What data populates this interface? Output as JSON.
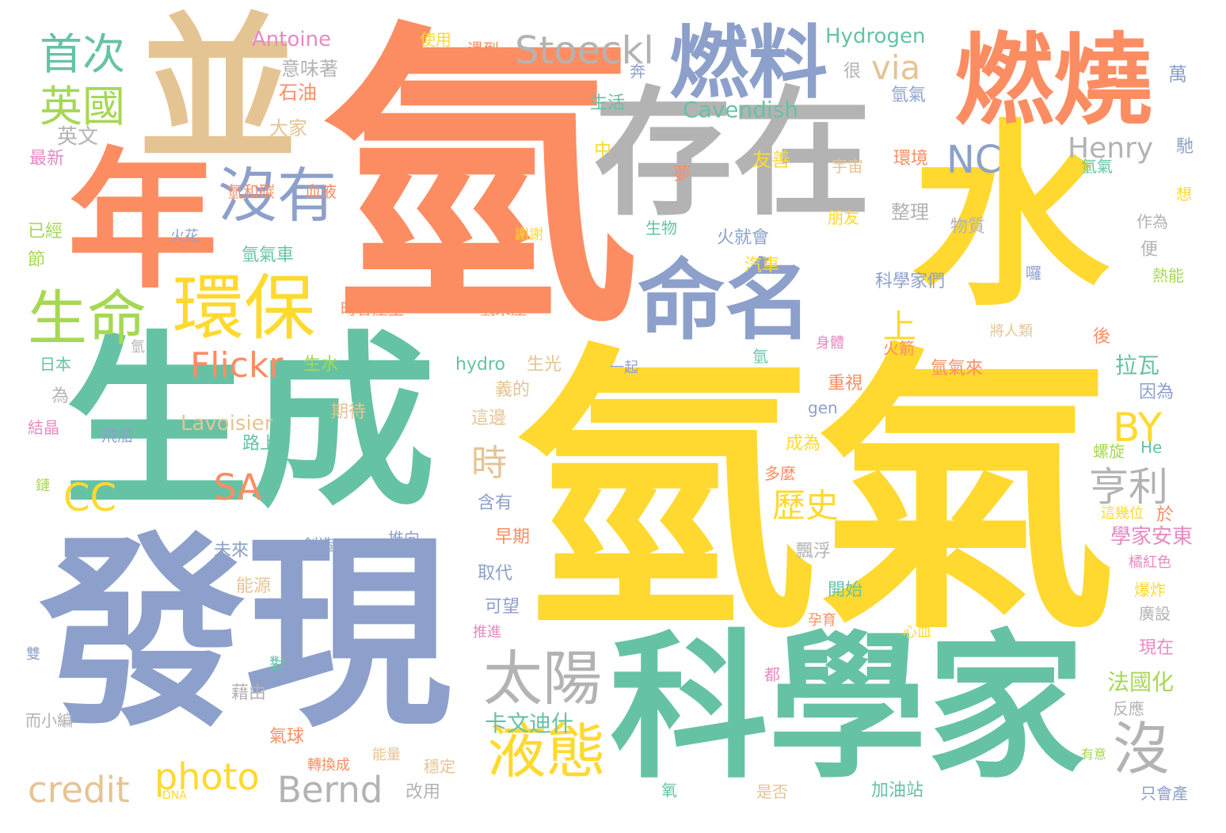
{
  "palette": {
    "orange": "#fc8d62",
    "yellow": "#ffd92f",
    "green": "#66c2a5",
    "blue": "#8da0cb",
    "gray": "#b3b3b3",
    "tan": "#e5c494",
    "lime": "#a6d854",
    "pink": "#e78ac3"
  },
  "words": [
    "氫",
    "氫氣",
    "生成",
    "發現",
    "科學家",
    "水",
    "存在",
    "並",
    "年",
    "燃燒",
    "燃料",
    "命名",
    "環保",
    "沒有",
    "生命",
    "太陽",
    "液態",
    "沒",
    "亨利",
    "Stoeckl",
    "photo",
    "credit",
    "Bernd",
    "Flickr",
    "首次",
    "英國",
    "CC",
    "SA",
    "NC",
    "BY",
    "via",
    "歷史",
    "時",
    "上",
    "Henry",
    "Cavendish",
    "Hydrogen",
    "Antoine",
    "Lavoisier",
    "卡文迪什",
    "法國化",
    "學家安東",
    "拉瓦",
    "意味著",
    "石油",
    "大家",
    "英文",
    "最新",
    "氫和碳",
    "血液",
    "使用",
    "遇到",
    "奔",
    "生活",
    "很",
    "氫氣",
    "萬",
    "中",
    "宇宙",
    "環境",
    "馳",
    "友善",
    "夢",
    "氫氣",
    "想",
    "生物",
    "朋友",
    "整理",
    "物質",
    "作為",
    "已經",
    "節",
    "火花",
    "謝謝",
    "火就會",
    "氫氣車",
    "汽車",
    "便",
    "囉",
    "熱能",
    "時會產生",
    "氫來產",
    "科學家們",
    "將人類",
    "後",
    "日本",
    "氫",
    "生水",
    "hydro",
    "生光",
    "一起",
    "氫",
    "火箭",
    "身體",
    "氫氣來",
    "為",
    "義的",
    "重視",
    "因為",
    "結晶",
    "gen",
    "期待",
    "飛船",
    "這邊",
    "路上",
    "螺旋",
    "He",
    "成為",
    "多麼",
    "鏈",
    "含有",
    "這幾位",
    "於",
    "未來",
    "創造",
    "推向",
    "早期",
    "飄浮",
    "橘紅色",
    "能源",
    "取代",
    "開始",
    "爆炸",
    "可望",
    "廣設",
    "推進",
    "孕育",
    "心血",
    "雙",
    "海洋",
    "現在",
    "對",
    "都",
    "藉由",
    "反應",
    "而小編",
    "氣球",
    "轉換成",
    "能量",
    "有意",
    "氧",
    "穩定",
    "是否",
    "加油站",
    "只會產",
    "DNA",
    "改用"
  ]
}
